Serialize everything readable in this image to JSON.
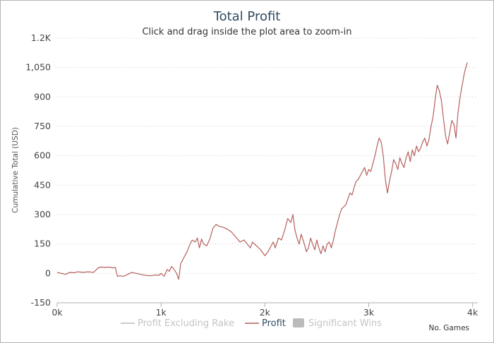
{
  "chart_data": {
    "type": "line",
    "title": "Total Profit",
    "subtitle": "Click and drag inside the plot area to zoom-in",
    "xlabel": "No. Games",
    "ylabel": "Cumulative Total (USD)",
    "xlim": [
      0,
      4050
    ],
    "ylim": [
      -150,
      1200
    ],
    "x_ticks": [
      0,
      1000,
      2000,
      3000,
      4000
    ],
    "x_tick_labels": [
      "0k",
      "1k",
      "2k",
      "3k",
      "4k"
    ],
    "y_ticks": [
      -150,
      0,
      150,
      300,
      450,
      600,
      750,
      900,
      1050,
      1200
    ],
    "y_tick_labels": [
      "-150",
      "0",
      "150",
      "300",
      "450",
      "600",
      "750",
      "900",
      "1,050",
      "1.2K"
    ],
    "grid": "horizontal dotted",
    "legend": {
      "placement": "bottom-center",
      "items": [
        {
          "label": "Profit Excluding Rake",
          "color": "#bbbbbb",
          "symbol": "line",
          "state": "hidden"
        },
        {
          "label": "Profit",
          "color": "#b5605e",
          "symbol": "line",
          "state": "active"
        },
        {
          "label": "Significant Wins",
          "color": "#bbbbbb",
          "symbol": "box",
          "state": "hidden"
        }
      ]
    },
    "series": [
      {
        "name": "Profit",
        "color": "#b5605e",
        "points": [
          [
            0,
            5
          ],
          [
            40,
            0
          ],
          [
            80,
            -5
          ],
          [
            120,
            5
          ],
          [
            160,
            3
          ],
          [
            200,
            8
          ],
          [
            250,
            5
          ],
          [
            300,
            8
          ],
          [
            350,
            5
          ],
          [
            400,
            30
          ],
          [
            430,
            32
          ],
          [
            460,
            30
          ],
          [
            500,
            32
          ],
          [
            540,
            28
          ],
          [
            560,
            30
          ],
          [
            580,
            -15
          ],
          [
            600,
            -12
          ],
          [
            640,
            -15
          ],
          [
            680,
            -5
          ],
          [
            720,
            5
          ],
          [
            760,
            0
          ],
          [
            800,
            -5
          ],
          [
            850,
            -10
          ],
          [
            900,
            -12
          ],
          [
            950,
            -8
          ],
          [
            980,
            -10
          ],
          [
            1000,
            0
          ],
          [
            1030,
            -15
          ],
          [
            1060,
            20
          ],
          [
            1080,
            10
          ],
          [
            1100,
            35
          ],
          [
            1120,
            25
          ],
          [
            1150,
            0
          ],
          [
            1170,
            -30
          ],
          [
            1190,
            50
          ],
          [
            1220,
            80
          ],
          [
            1250,
            110
          ],
          [
            1280,
            150
          ],
          [
            1300,
            170
          ],
          [
            1330,
            160
          ],
          [
            1350,
            180
          ],
          [
            1370,
            130
          ],
          [
            1390,
            175
          ],
          [
            1410,
            150
          ],
          [
            1440,
            140
          ],
          [
            1470,
            175
          ],
          [
            1500,
            230
          ],
          [
            1530,
            250
          ],
          [
            1560,
            240
          ],
          [
            1600,
            235
          ],
          [
            1640,
            225
          ],
          [
            1680,
            210
          ],
          [
            1720,
            185
          ],
          [
            1760,
            160
          ],
          [
            1800,
            170
          ],
          [
            1830,
            150
          ],
          [
            1860,
            130
          ],
          [
            1880,
            160
          ],
          [
            1920,
            140
          ],
          [
            1960,
            120
          ],
          [
            2000,
            90
          ],
          [
            2030,
            110
          ],
          [
            2060,
            140
          ],
          [
            2080,
            160
          ],
          [
            2100,
            130
          ],
          [
            2130,
            180
          ],
          [
            2160,
            170
          ],
          [
            2190,
            220
          ],
          [
            2220,
            280
          ],
          [
            2250,
            260
          ],
          [
            2270,
            300
          ],
          [
            2290,
            220
          ],
          [
            2310,
            180
          ],
          [
            2330,
            150
          ],
          [
            2350,
            200
          ],
          [
            2380,
            150
          ],
          [
            2400,
            110
          ],
          [
            2420,
            130
          ],
          [
            2440,
            180
          ],
          [
            2460,
            150
          ],
          [
            2480,
            120
          ],
          [
            2500,
            170
          ],
          [
            2520,
            130
          ],
          [
            2540,
            100
          ],
          [
            2560,
            140
          ],
          [
            2580,
            110
          ],
          [
            2600,
            150
          ],
          [
            2620,
            160
          ],
          [
            2640,
            130
          ],
          [
            2660,
            170
          ],
          [
            2680,
            220
          ],
          [
            2700,
            260
          ],
          [
            2720,
            300
          ],
          [
            2740,
            330
          ],
          [
            2760,
            340
          ],
          [
            2780,
            350
          ],
          [
            2800,
            380
          ],
          [
            2820,
            410
          ],
          [
            2840,
            400
          ],
          [
            2860,
            440
          ],
          [
            2880,
            470
          ],
          [
            2900,
            480
          ],
          [
            2920,
            500
          ],
          [
            2940,
            520
          ],
          [
            2960,
            540
          ],
          [
            2980,
            500
          ],
          [
            3000,
            530
          ],
          [
            3020,
            520
          ],
          [
            3040,
            560
          ],
          [
            3060,
            600
          ],
          [
            3080,
            650
          ],
          [
            3100,
            690
          ],
          [
            3120,
            670
          ],
          [
            3140,
            600
          ],
          [
            3160,
            480
          ],
          [
            3180,
            410
          ],
          [
            3200,
            470
          ],
          [
            3220,
            520
          ],
          [
            3240,
            580
          ],
          [
            3260,
            560
          ],
          [
            3280,
            530
          ],
          [
            3300,
            590
          ],
          [
            3320,
            560
          ],
          [
            3340,
            540
          ],
          [
            3360,
            590
          ],
          [
            3380,
            620
          ],
          [
            3400,
            570
          ],
          [
            3420,
            630
          ],
          [
            3440,
            600
          ],
          [
            3460,
            650
          ],
          [
            3480,
            620
          ],
          [
            3500,
            640
          ],
          [
            3520,
            670
          ],
          [
            3540,
            690
          ],
          [
            3560,
            650
          ],
          [
            3580,
            680
          ],
          [
            3600,
            750
          ],
          [
            3620,
            800
          ],
          [
            3640,
            890
          ],
          [
            3660,
            960
          ],
          [
            3680,
            930
          ],
          [
            3700,
            880
          ],
          [
            3720,
            790
          ],
          [
            3740,
            700
          ],
          [
            3760,
            660
          ],
          [
            3780,
            720
          ],
          [
            3800,
            780
          ],
          [
            3820,
            760
          ],
          [
            3840,
            690
          ],
          [
            3860,
            820
          ],
          [
            3880,
            900
          ],
          [
            3900,
            960
          ],
          [
            3920,
            1020
          ],
          [
            3940,
            1060
          ],
          [
            3950,
            1075
          ]
        ]
      }
    ]
  }
}
